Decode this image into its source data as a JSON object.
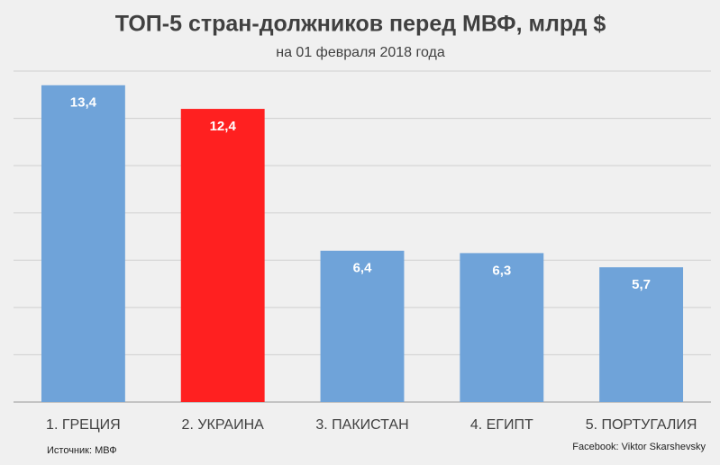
{
  "chart_data": {
    "type": "bar",
    "title": "ТОП-5 стран-должников перед МВФ, млрд $",
    "subtitle": "на 01 февраля 2018 года",
    "categories": [
      "1. ГРЕЦИЯ",
      "2. УКРАИНА",
      "3. ПАКИСТАН",
      "4. ЕГИПТ",
      "5. ПОРТУГАЛИЯ"
    ],
    "values": [
      13.4,
      12.4,
      6.4,
      6.3,
      5.7
    ],
    "value_labels": [
      "13,4",
      "12,4",
      "6,4",
      "6,3",
      "5,7"
    ],
    "colors": [
      "#6fa3d9",
      "#ff2020",
      "#6fa3d9",
      "#6fa3d9",
      "#6fa3d9"
    ],
    "ylim": [
      0,
      14
    ],
    "yticks": [
      0,
      2,
      4,
      6,
      8,
      10,
      12,
      14
    ],
    "grid": true,
    "source": "Источник: МВФ",
    "credit": "Facebook: Viktor Skarshevsky"
  }
}
